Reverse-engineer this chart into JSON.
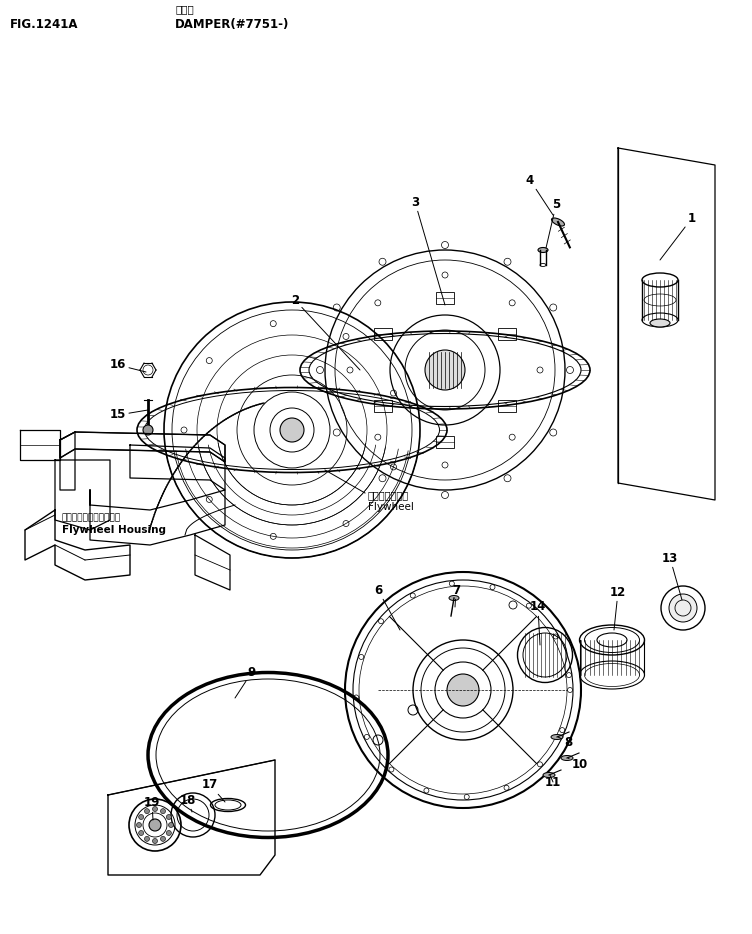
{
  "title_jp": "ダンパ",
  "title_en": "DAMPER(#7751-)",
  "fig_label": "FIG.1241A",
  "bg_color": "#ffffff",
  "line_color": "#000000",
  "flywheel_label_jp": "フライホイール",
  "flywheel_label_en": "Flywheel",
  "housing_label_jp": "フライホイールハジング",
  "housing_label_en": "Flywheel Housing"
}
